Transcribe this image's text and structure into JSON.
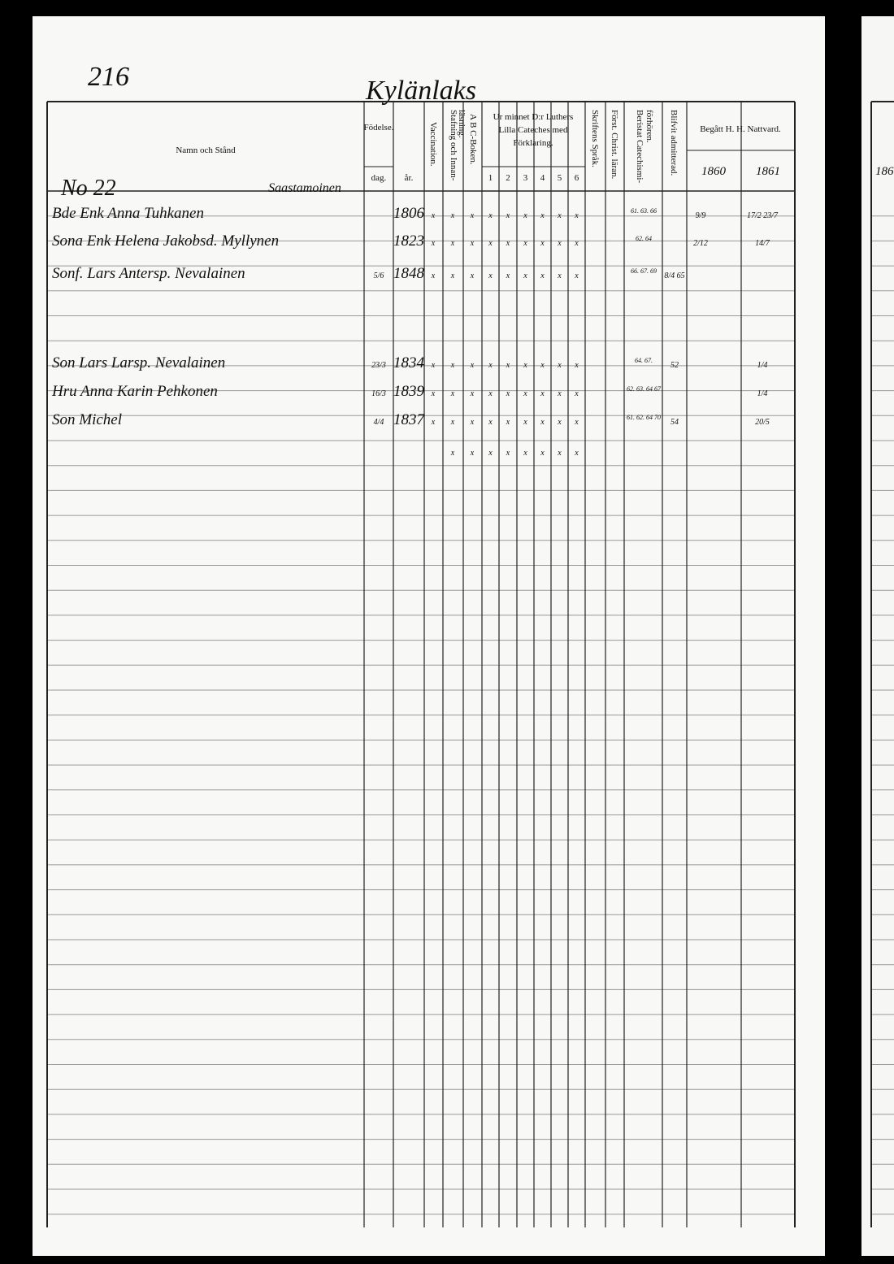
{
  "page_number": "216",
  "village": "Kylänlaks",
  "household": {
    "number": "No 22",
    "place": "Saastamoinen"
  },
  "header": {
    "name": "Namn och Stånd",
    "birth": {
      "label": "Födelse.",
      "day": "dag.",
      "year": "år."
    },
    "vaccination": "Vaccination.",
    "reading": [
      "Stafning och Innan-",
      "läsning."
    ],
    "abc": "A B C-Boken.",
    "catechism": {
      "label": [
        "Ur minnet D:r Luthers",
        "Lilla Cateches med",
        "Förklaring."
      ],
      "parts": [
        "1",
        "2",
        "3",
        "4",
        "5",
        "6"
      ]
    },
    "scripture": "Skriftens Språk.",
    "christ": "Först. Christ. läran.",
    "hearings": [
      "Beristat Catechismi-",
      "förhören."
    ],
    "admitted": "Blifvit admitterad.",
    "communion": {
      "label": "Begått H. H. Nattvard.",
      "years": [
        "1860",
        "1861"
      ]
    }
  },
  "rows": [
    {
      "name": "Bde Enk Anna Tuhkanen",
      "year": "1806",
      "vaccination": "x",
      "reading": "x",
      "abc": "x",
      "catechism": [
        "x",
        "x",
        "x",
        "x",
        "x",
        "x"
      ],
      "hearings": "61. 63. 66",
      "communion_1860": "9/9",
      "communion_1861": "17/2 23/7"
    },
    {
      "name": "Sona Enk Helena Jakobsd. Myllynen",
      "year": "1823",
      "vaccination": "x",
      "reading": "x",
      "abc": "x",
      "catechism": [
        "x",
        "x",
        "x",
        "x",
        "x",
        "x"
      ],
      "hearings": "62. 64",
      "communion_1860": "2/12",
      "communion_1861": "14/7"
    },
    {
      "name": "Sonf. Lars Antersp. Nevalainen",
      "day": "5/6",
      "year": "1848",
      "vaccination": "x",
      "reading": "x",
      "abc": "x",
      "catechism": [
        "x",
        "x",
        "x",
        "x",
        "x",
        "x"
      ],
      "hearings": "66. 67. 69",
      "admitted": "8/4 65"
    },
    {
      "name": "Son Lars Larsp. Nevalainen",
      "day": "23/3",
      "year": "1834",
      "vaccination": "x",
      "reading": "x",
      "abc": "x",
      "catechism": [
        "x",
        "x",
        "x",
        "x",
        "x",
        "x"
      ],
      "hearings": "64. 67.",
      "admitted": "52",
      "communion_1861": "1/4"
    },
    {
      "name": "Hru Anna Karin Pehkonen",
      "day": "16/3",
      "year": "1839",
      "vaccination": "x",
      "reading": "x",
      "abc": "x",
      "catechism": [
        "x",
        "x",
        "x",
        "x",
        "x",
        "x"
      ],
      "hearings": "62. 63. 64 67",
      "communion_1861": "1/4"
    },
    {
      "name": "Son Michel",
      "day": "4/4",
      "year": "1837",
      "vaccination": "x",
      "reading": "x",
      "abc": "x",
      "catechism": [
        "x",
        "x",
        "x",
        "x",
        "x",
        "x"
      ],
      "hearings": "61. 62. 64 70",
      "admitted": "54",
      "communion_1861": "20/5"
    },
    {
      "reading": "x",
      "abc": "x",
      "catechism": [
        "x",
        "x",
        "x",
        "x",
        "x",
        "x"
      ]
    }
  ]
}
